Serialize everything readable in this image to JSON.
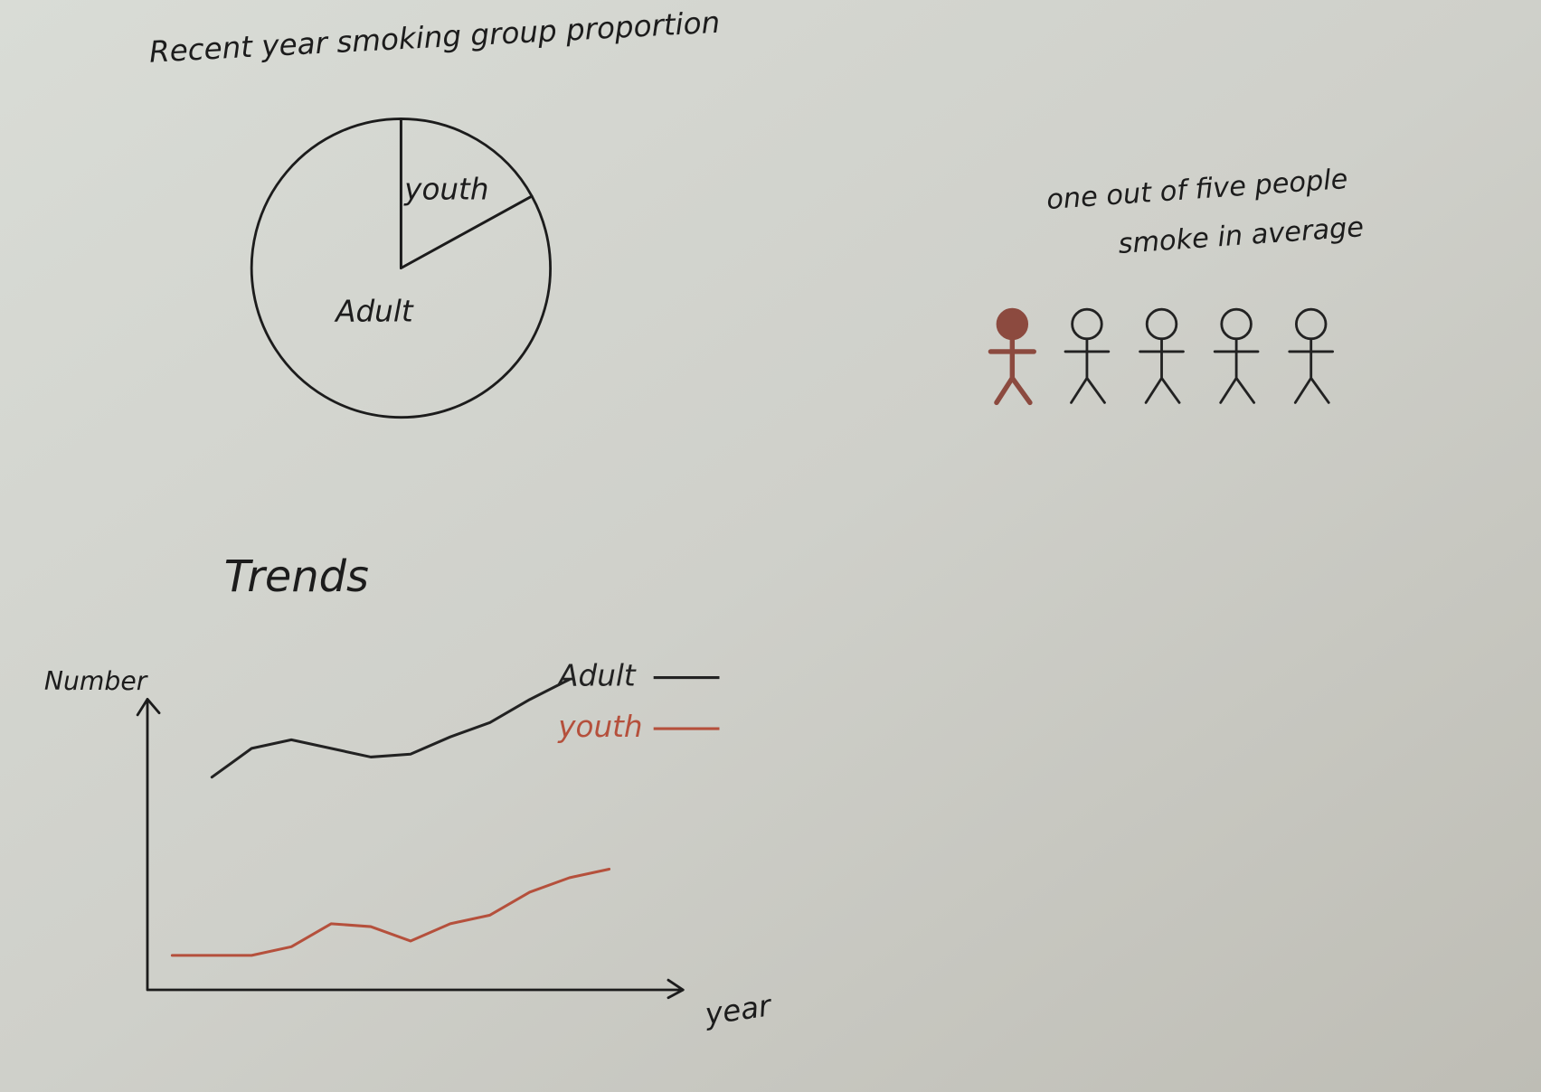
{
  "chart_data": [
    {
      "type": "pie",
      "title": "Recent year smoking group proportion",
      "categories": [
        "youth",
        "Adult"
      ],
      "values": [
        17,
        83
      ]
    },
    {
      "type": "pictogram",
      "title": [
        "one out of five people",
        "smoke in average"
      ],
      "values": [
        1,
        4
      ],
      "colors": [
        "#8c4a3f",
        "#222222"
      ]
    },
    {
      "type": "line",
      "title": "Trends",
      "ylabel": "Number",
      "xlabel": "year",
      "categories": [
        null,
        null,
        null,
        null,
        null,
        null,
        null,
        null,
        null,
        null,
        null,
        null
      ],
      "series": [
        {
          "name": "Adult",
          "color": "#222222",
          "values": [
            null,
            74,
            84,
            87,
            84,
            81,
            82,
            88,
            93,
            101,
            108,
            null
          ]
        },
        {
          "name": "youth",
          "color": "#b5503c",
          "values": [
            12,
            12,
            12,
            15,
            23,
            22,
            17,
            23,
            26,
            34,
            39,
            42
          ]
        }
      ],
      "ylim": [
        0,
        110
      ]
    }
  ]
}
